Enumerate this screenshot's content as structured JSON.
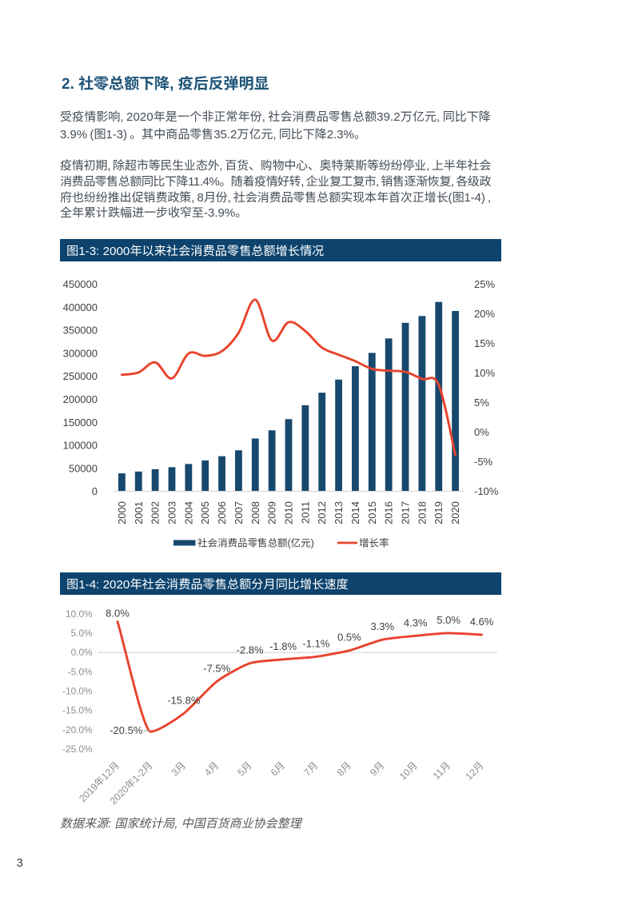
{
  "page": {
    "number": "3"
  },
  "heading": {
    "text": "2. 社零总额下降, 疫后反弹明显"
  },
  "paragraphs": [
    {
      "lines": [
        "受疫情影响, 2020年是一个非正常年份, 社会消费品零售总额39.2万亿元, 同比下降",
        "3.9% (图1-3) 。其中商品零售35.2万亿元, 同比下降2.3%。"
      ]
    },
    {
      "lines": [
        "疫情初期, 除超市等民生业态外, 百货、购物中心、奥特莱斯等纷纷停业, 上半年社会",
        "消费品零售总额同比下降11.4%。随着疫情好转, 企业复工复市, 销售逐渐恢复, 各级政",
        "府也纷纷推出促销费政策, 8月份, 社会消费品零售总额实现本年首次正增长(图1-4) ,",
        "全年累计跌幅进一步收窄至-3.9%。"
      ]
    }
  ],
  "figures": [
    {
      "title": "图1-3: 2000年以来社会消费品零售总额增长情况"
    },
    {
      "title": "图1-4: 2020年社会消费品零售总额分月同比增长速度"
    }
  ],
  "source_note": "数据来源: 国家统计局, 中国百货商业协会整理",
  "colors": {
    "navy_bar": "#0d436d",
    "navy_series": "#17496f",
    "heading_blue": "#1f5478",
    "body_text": "#485058",
    "red_line": "#e8432d",
    "axis_label_dark": "#404040",
    "axis_label_gray": "#8e8e8e",
    "grid_line": "#d9d9d9",
    "source_gray": "#595959"
  },
  "chart_data": [
    {
      "type": "bar+line",
      "title": "图1-3: 2000年以来社会消费品零售总额增长情况",
      "categories": [
        "2000",
        "2001",
        "2002",
        "2003",
        "2004",
        "2005",
        "2006",
        "2007",
        "2008",
        "2009",
        "2010",
        "2011",
        "2012",
        "2013",
        "2014",
        "2015",
        "2016",
        "2017",
        "2018",
        "2019",
        "2020"
      ],
      "series": [
        {
          "name": "社会消费品零售总额(亿元)",
          "type": "bar",
          "axis": "left",
          "values": [
            39106,
            43055,
            48136,
            52516,
            59501,
            67177,
            76410,
            89210,
            114830,
            132678,
            156998,
            187206,
            214433,
            242843,
            271896,
            300931,
            332316,
            366262,
            380987,
            411649,
            391981
          ]
        },
        {
          "name": "增长率",
          "type": "line",
          "axis": "right",
          "values": [
            9.7,
            10.1,
            11.8,
            9.1,
            13.3,
            12.9,
            13.7,
            16.8,
            22.4,
            15.5,
            18.6,
            17.1,
            14.3,
            13.1,
            12.0,
            10.7,
            10.4,
            10.2,
            9.0,
            8.0,
            -3.9
          ]
        }
      ],
      "left_axis": {
        "min": 0,
        "max": 450000,
        "step": 50000
      },
      "right_axis": {
        "min": -10,
        "max": 25,
        "step": 5,
        "suffix": "%"
      },
      "grid": false,
      "legend_position": "bottom"
    },
    {
      "type": "line",
      "title": "图1-4: 2020年社会消费品零售总额分月同比增长速度",
      "categories": [
        "2019年12月",
        "2020年1-2月",
        "3月",
        "4月",
        "5月",
        "6月",
        "7月",
        "8月",
        "9月",
        "10月",
        "11月",
        "12月"
      ],
      "values": [
        8.0,
        -20.5,
        -15.8,
        -7.5,
        -2.8,
        -1.8,
        -1.1,
        0.5,
        3.3,
        4.3,
        5.0,
        4.6
      ],
      "data_labels": [
        "8.0%",
        "-20.5%",
        "-15.8%",
        "-7.5%",
        "-2.8%",
        "-1.8%",
        "-1.1%",
        "0.5%",
        "3.3%",
        "4.3%",
        "5.0%",
        "4.6%"
      ],
      "y_axis": {
        "min": -25,
        "max": 10,
        "step": 5,
        "suffix": ".0%"
      },
      "grid": "zero-line-only",
      "legend_position": "none"
    }
  ]
}
